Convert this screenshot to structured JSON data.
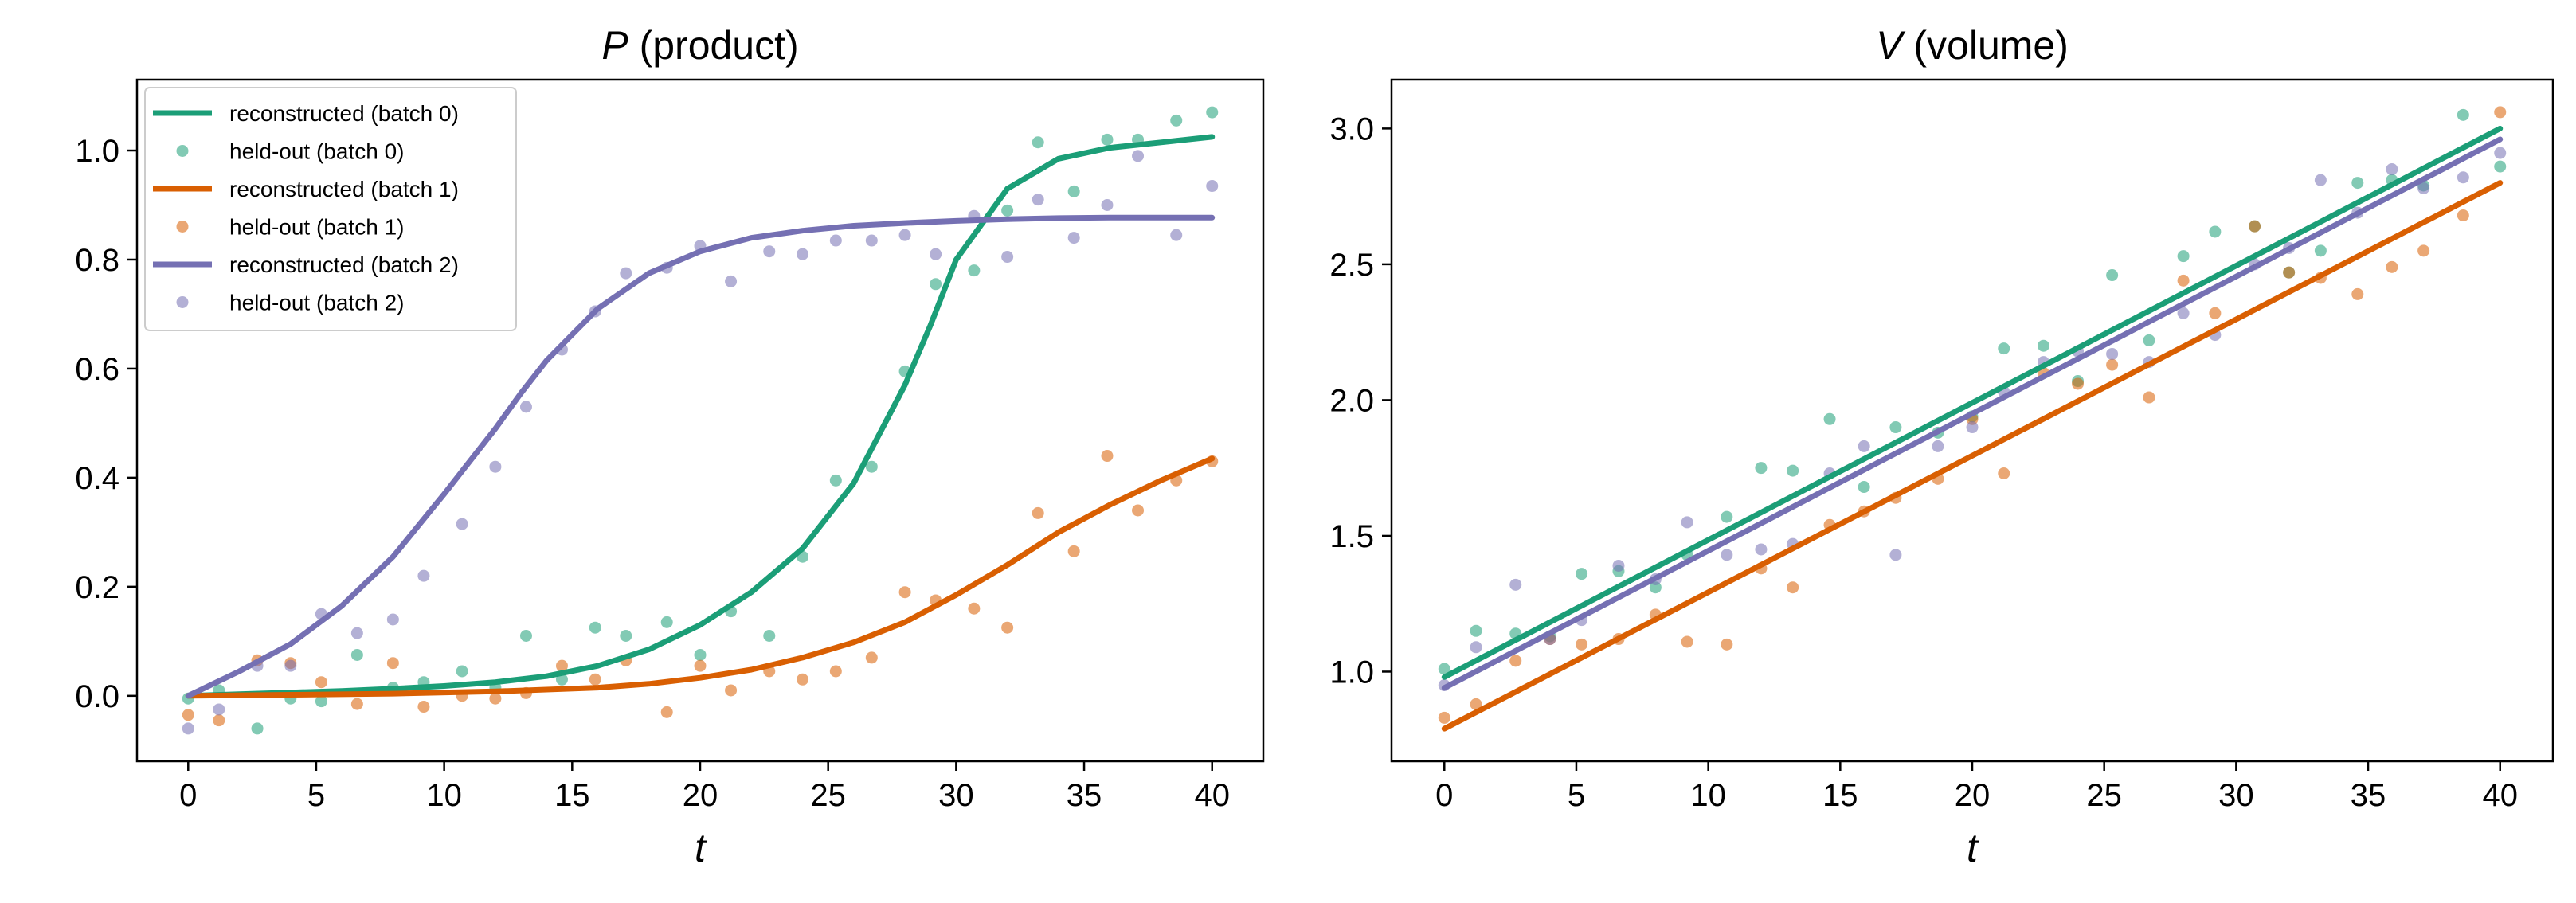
{
  "colors": {
    "batch0": "#1b9e77",
    "batch1": "#d95f02",
    "batch2": "#7570b3"
  },
  "chart_data": [
    {
      "type": "line",
      "title_var": "P",
      "title_rest": " (product)",
      "xlabel": "t",
      "ylabel": "",
      "xlim": [
        -2,
        42
      ],
      "ylim": [
        -0.12,
        1.13
      ],
      "xticks": [
        0,
        5,
        10,
        15,
        20,
        25,
        30,
        35,
        40
      ],
      "yticks": [
        0.0,
        0.2,
        0.4,
        0.6,
        0.8,
        1.0
      ],
      "ytick_labels": [
        "0.0",
        "0.2",
        "0.4",
        "0.6",
        "0.8",
        "1.0"
      ],
      "legend": {
        "placement": "upper-left",
        "entries": [
          {
            "label": "reconstructed (batch 0)",
            "kind": "line",
            "color_key": "batch0"
          },
          {
            "label": "held-out (batch 0)",
            "kind": "marker",
            "color_key": "batch0"
          },
          {
            "label": "reconstructed (batch 1)",
            "kind": "line",
            "color_key": "batch1"
          },
          {
            "label": "held-out (batch 1)",
            "kind": "marker",
            "color_key": "batch1"
          },
          {
            "label": "reconstructed (batch 2)",
            "kind": "line",
            "color_key": "batch2"
          },
          {
            "label": "held-out (batch 2)",
            "kind": "marker",
            "color_key": "batch2"
          }
        ]
      },
      "series": [
        {
          "label": "reconstructed (batch 0)",
          "kind": "line",
          "color_key": "batch0",
          "x": [
            0,
            2,
            4,
            6,
            8,
            10,
            12,
            14,
            16,
            18,
            20,
            22,
            24,
            26,
            28,
            29,
            30,
            32,
            34,
            36,
            38,
            40
          ],
          "y": [
            0.0,
            0.003,
            0.006,
            0.009,
            0.013,
            0.018,
            0.025,
            0.036,
            0.055,
            0.085,
            0.13,
            0.19,
            0.27,
            0.39,
            0.57,
            0.68,
            0.8,
            0.93,
            0.985,
            1.005,
            1.015,
            1.025
          ]
        },
        {
          "label": "held-out (batch 0)",
          "kind": "scatter",
          "color_key": "batch0",
          "x": [
            0,
            1.2,
            2.7,
            4,
            5.2,
            6.6,
            8,
            9.2,
            10.7,
            12,
            13.2,
            14.6,
            15.9,
            17.1,
            18.7,
            20,
            21.2,
            22.7,
            24,
            25.3,
            26.7,
            28,
            29.2,
            30.7,
            32,
            33.2,
            34.6,
            35.9,
            37.1,
            38.6,
            40
          ],
          "y": [
            -0.005,
            0.01,
            -0.06,
            -0.005,
            -0.01,
            0.075,
            0.015,
            0.025,
            0.045,
            0.015,
            0.11,
            0.03,
            0.125,
            0.11,
            0.135,
            0.075,
            0.155,
            0.11,
            0.255,
            0.395,
            0.42,
            0.595,
            0.755,
            0.78,
            0.89,
            1.015,
            0.925,
            1.02,
            1.02,
            1.055,
            1.07
          ]
        },
        {
          "label": "reconstructed (batch 1)",
          "kind": "line",
          "color_key": "batch1",
          "x": [
            0,
            4,
            8,
            12,
            16,
            18,
            20,
            22,
            24,
            26,
            28,
            30,
            32,
            34,
            36,
            38,
            40
          ],
          "y": [
            0.0,
            0.002,
            0.004,
            0.008,
            0.015,
            0.022,
            0.033,
            0.048,
            0.07,
            0.098,
            0.135,
            0.185,
            0.24,
            0.3,
            0.35,
            0.395,
            0.435
          ]
        },
        {
          "label": "held-out (batch 1)",
          "kind": "scatter",
          "color_key": "batch1",
          "x": [
            0,
            1.2,
            2.7,
            4,
            5.2,
            6.6,
            8,
            9.2,
            10.7,
            12,
            13.2,
            14.6,
            15.9,
            17.1,
            18.7,
            20,
            21.2,
            22.7,
            24,
            25.3,
            26.7,
            28,
            29.2,
            30.7,
            32,
            33.2,
            34.6,
            35.9,
            37.1,
            38.6,
            40
          ],
          "y": [
            -0.035,
            -0.045,
            0.065,
            0.06,
            0.025,
            -0.015,
            0.06,
            -0.02,
            0.0,
            -0.005,
            0.005,
            0.055,
            0.03,
            0.065,
            -0.03,
            0.055,
            0.01,
            0.045,
            0.03,
            0.045,
            0.07,
            0.19,
            0.175,
            0.16,
            0.125,
            0.335,
            0.265,
            0.44,
            0.34,
            0.395,
            0.43
          ]
        },
        {
          "label": "reconstructed (batch 2)",
          "kind": "line",
          "color_key": "batch2",
          "x": [
            0,
            2,
            4,
            6,
            8,
            10,
            12,
            13,
            14,
            16,
            18,
            20,
            22,
            24,
            26,
            28,
            30,
            32,
            34,
            36,
            38,
            40
          ],
          "y": [
            0.0,
            0.045,
            0.095,
            0.165,
            0.255,
            0.37,
            0.49,
            0.555,
            0.615,
            0.71,
            0.775,
            0.815,
            0.84,
            0.853,
            0.862,
            0.867,
            0.871,
            0.874,
            0.876,
            0.877,
            0.877,
            0.877
          ]
        },
        {
          "label": "held-out (batch 2)",
          "kind": "scatter",
          "color_key": "batch2",
          "x": [
            0,
            1.2,
            2.7,
            4,
            5.2,
            6.6,
            8,
            9.2,
            10.7,
            12,
            13.2,
            14.6,
            15.9,
            17.1,
            18.7,
            20,
            21.2,
            22.7,
            24,
            25.3,
            26.7,
            28,
            29.2,
            30.7,
            32,
            33.2,
            34.6,
            35.9,
            37.1,
            38.6,
            40
          ],
          "y": [
            -0.06,
            -0.025,
            0.055,
            0.055,
            0.15,
            0.115,
            0.14,
            0.22,
            0.315,
            0.42,
            0.53,
            0.635,
            0.705,
            0.775,
            0.785,
            0.825,
            0.76,
            0.815,
            0.81,
            0.835,
            0.835,
            0.845,
            0.81,
            0.88,
            0.805,
            0.91,
            0.84,
            0.9,
            0.99,
            0.845,
            0.935
          ]
        }
      ]
    },
    {
      "type": "line",
      "title_var": "V",
      "title_rest": " (volume)",
      "xlabel": "t",
      "ylabel": "",
      "xlim": [
        -2,
        42
      ],
      "ylim": [
        0.67,
        3.18
      ],
      "xticks": [
        0,
        5,
        10,
        15,
        20,
        25,
        30,
        35,
        40
      ],
      "yticks": [
        1.0,
        1.5,
        2.0,
        2.5,
        3.0
      ],
      "ytick_labels": [
        "1.0",
        "1.5",
        "2.0",
        "2.5",
        "3.0"
      ],
      "series": [
        {
          "label": "reconstructed (batch 0)",
          "kind": "line",
          "color_key": "batch0",
          "x": [
            0,
            40
          ],
          "y": [
            0.98,
            3.0
          ]
        },
        {
          "label": "held-out (batch 0)",
          "kind": "scatter",
          "color_key": "batch0",
          "x": [
            0,
            1.2,
            2.7,
            4,
            5.2,
            6.6,
            8,
            9.2,
            10.7,
            12,
            13.2,
            14.6,
            15.9,
            17.1,
            18.7,
            20,
            21.2,
            22.7,
            24,
            25.3,
            26.7,
            28,
            29.2,
            30.7,
            32,
            33.2,
            34.6,
            35.9,
            37.1,
            38.6,
            40
          ],
          "y": [
            1.01,
            1.15,
            1.14,
            1.13,
            1.36,
            1.37,
            1.31,
            1.43,
            1.57,
            1.75,
            1.74,
            1.93,
            1.68,
            1.9,
            1.88,
            1.94,
            2.19,
            2.2,
            2.07,
            2.46,
            2.22,
            2.53,
            2.62,
            2.64,
            2.47,
            2.55,
            2.8,
            2.81,
            2.79,
            3.05,
            2.86
          ]
        },
        {
          "label": "reconstructed (batch 1)",
          "kind": "line",
          "color_key": "batch1",
          "x": [
            0,
            40
          ],
          "y": [
            0.79,
            2.8
          ]
        },
        {
          "label": "held-out (batch 1)",
          "kind": "scatter",
          "color_key": "batch1",
          "x": [
            0,
            1.2,
            2.7,
            4,
            5.2,
            6.6,
            8,
            9.2,
            10.7,
            12,
            13.2,
            14.6,
            15.9,
            17.1,
            18.7,
            20,
            21.2,
            22.7,
            24,
            25.3,
            26.7,
            28,
            29.2,
            30.7,
            32,
            33.2,
            34.6,
            35.9,
            37.1,
            38.6,
            40
          ],
          "y": [
            0.83,
            0.88,
            1.04,
            1.12,
            1.1,
            1.12,
            1.21,
            1.11,
            1.1,
            1.38,
            1.31,
            1.54,
            1.59,
            1.64,
            1.71,
            1.93,
            1.73,
            2.1,
            2.06,
            2.13,
            2.01,
            2.44,
            2.32,
            2.64,
            2.47,
            2.45,
            2.39,
            2.49,
            2.55,
            2.68,
            3.06
          ]
        },
        {
          "label": "reconstructed (batch 2)",
          "kind": "line",
          "color_key": "batch2",
          "x": [
            0,
            40
          ],
          "y": [
            0.94,
            2.96
          ]
        },
        {
          "label": "held-out (batch 2)",
          "kind": "scatter",
          "color_key": "batch2",
          "x": [
            0,
            1.2,
            2.7,
            4,
            5.2,
            6.6,
            8,
            9.2,
            10.7,
            12,
            13.2,
            14.6,
            15.9,
            17.1,
            18.7,
            20,
            21.2,
            22.7,
            24,
            25.3,
            26.7,
            28,
            29.2,
            30.7,
            32,
            33.2,
            34.6,
            35.9,
            37.1,
            38.6,
            40
          ],
          "y": [
            0.95,
            1.09,
            1.32,
            1.12,
            1.19,
            1.39,
            1.34,
            1.55,
            1.43,
            1.45,
            1.47,
            1.73,
            1.83,
            1.43,
            1.83,
            1.9,
            2.03,
            2.14,
            2.18,
            2.17,
            2.14,
            2.32,
            2.24,
            2.5,
            2.56,
            2.81,
            2.69,
            2.85,
            2.78,
            2.82,
            2.91
          ]
        }
      ]
    }
  ]
}
